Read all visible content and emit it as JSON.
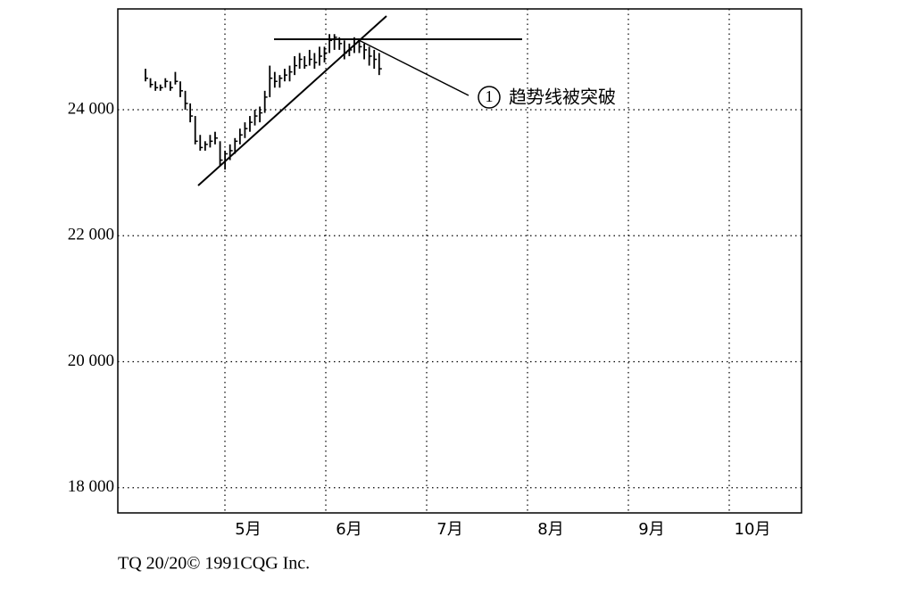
{
  "chart_data": {
    "type": "ohlc",
    "categories": [
      "5月",
      "6月",
      "7月",
      "8月",
      "9月",
      "10月"
    ],
    "ylim": [
      17600,
      25600
    ],
    "yticks": [
      {
        "value": 18000,
        "label": "18 000"
      },
      {
        "value": 20000,
        "label": "20 000"
      },
      {
        "value": 22000,
        "label": "22 000"
      },
      {
        "value": 24000,
        "label": "24 000"
      }
    ],
    "grid": true,
    "color": "#000000",
    "high": [
      24650,
      24500,
      24450,
      24400,
      24500,
      24450,
      24600,
      24450,
      24300,
      24100,
      23900,
      23600,
      23500,
      23600,
      23650,
      23500,
      23350,
      23450,
      23550,
      23700,
      23800,
      23900,
      24000,
      24050,
      24300,
      24700,
      24600,
      24550,
      24650,
      24700,
      24850,
      24900,
      24850,
      24950,
      24900,
      25000,
      25000,
      25200,
      25200,
      25150,
      25100,
      25050,
      25150,
      25100,
      25050,
      25000,
      24950,
      24900
    ],
    "low": [
      24450,
      24350,
      24300,
      24300,
      24350,
      24300,
      24400,
      24200,
      24000,
      23800,
      23450,
      23350,
      23350,
      23400,
      23450,
      23100,
      23050,
      23200,
      23300,
      23450,
      23550,
      23650,
      23750,
      23800,
      23950,
      24200,
      24350,
      24350,
      24450,
      24450,
      24550,
      24650,
      24650,
      24700,
      24650,
      24700,
      24750,
      24900,
      24950,
      24950,
      24800,
      24850,
      24900,
      24900,
      24800,
      24700,
      24650,
      24550
    ],
    "close": [
      24500,
      24400,
      24350,
      24350,
      24450,
      24350,
      24450,
      24300,
      24100,
      23900,
      23500,
      23400,
      23450,
      23500,
      23550,
      23200,
      23300,
      23350,
      23500,
      23600,
      23700,
      23800,
      23900,
      23950,
      24200,
      24500,
      24450,
      24500,
      24550,
      24600,
      24700,
      24800,
      24700,
      24800,
      24750,
      24850,
      24900,
      25100,
      25150,
      25050,
      24900,
      24950,
      25050,
      25000,
      24950,
      24850,
      24800,
      24650
    ],
    "annotation_number": "1",
    "annotation": "趋势线被突破",
    "source": "TQ 20/20© 1991CQG Inc."
  }
}
